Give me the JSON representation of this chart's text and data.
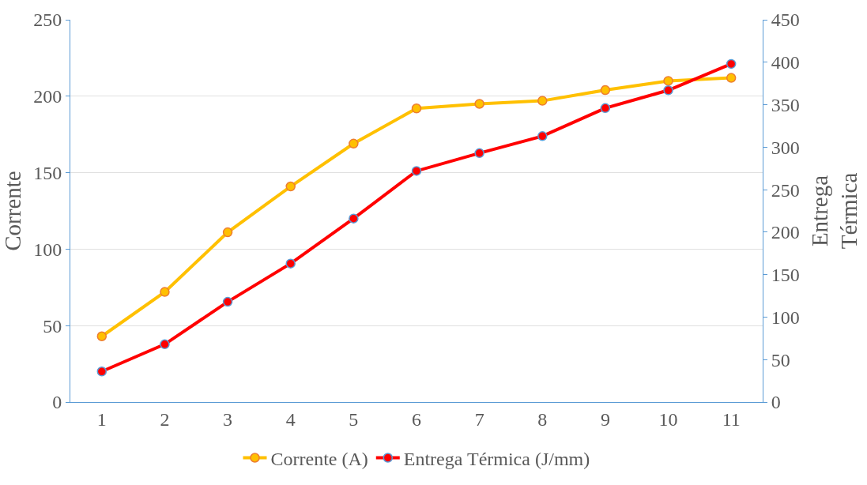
{
  "chart_data": {
    "type": "line",
    "categories": [
      "1",
      "2",
      "3",
      "4",
      "5",
      "6",
      "7",
      "8",
      "9",
      "10",
      "11"
    ],
    "ylabel": "Corrente",
    "y2label": "Entrega\nTérmica",
    "series": [
      {
        "name": "Corrente (A)",
        "color": "#ffc000",
        "values": [
          43,
          72,
          111,
          141,
          169,
          192,
          195,
          197,
          204,
          210,
          212
        ]
      },
      {
        "name": "Entrega Térmica (J/mm)",
        "color": "#ff0000",
        "axis": "y2",
        "values": [
          36,
          68,
          118,
          163,
          216,
          272,
          293,
          313,
          346,
          367,
          398
        ]
      }
    ],
    "ylim": [
      0,
      250
    ],
    "yticks": [
      0,
      50,
      100,
      150,
      200,
      250
    ],
    "y2lim": [
      0,
      450
    ],
    "y2ticks": [
      0,
      50,
      100,
      150,
      200,
      250,
      300,
      350,
      400,
      450
    ],
    "grid": "y",
    "legend": "bottom",
    "marker": "circle",
    "line_style": "solid"
  }
}
